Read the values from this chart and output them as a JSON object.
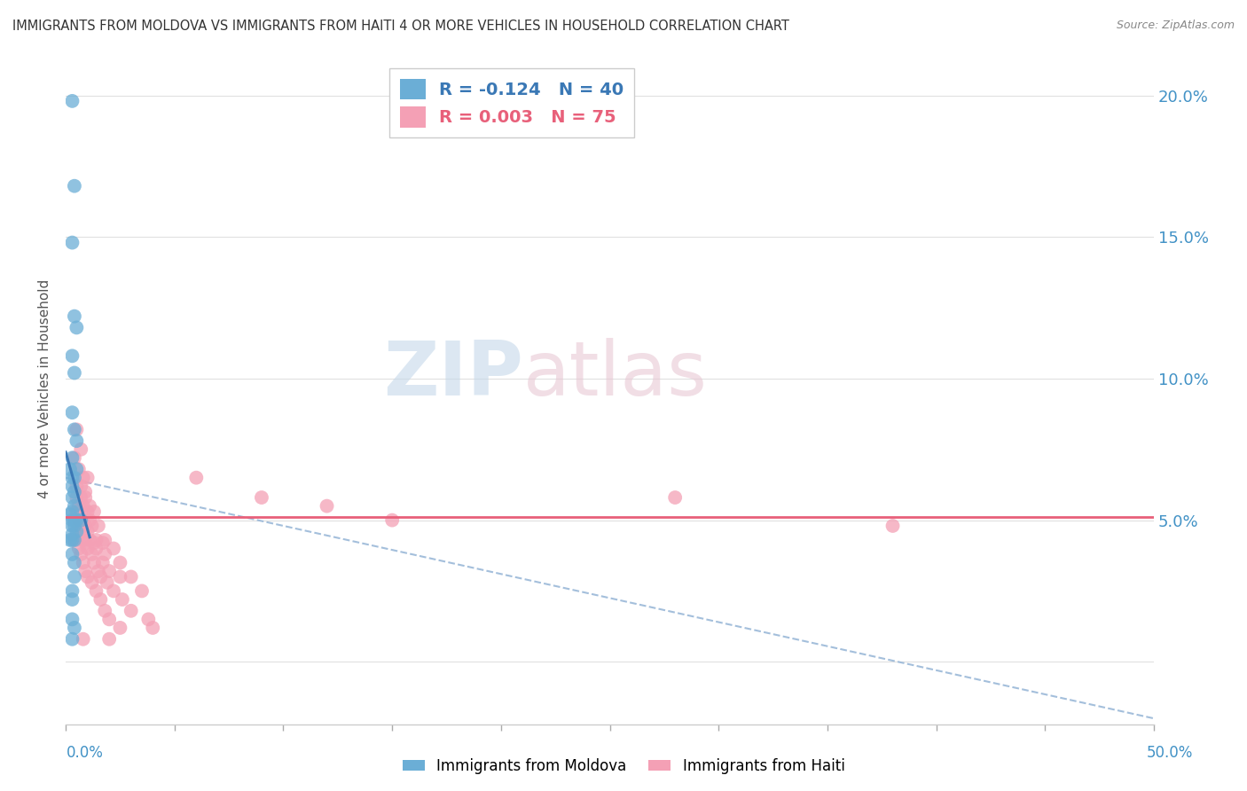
{
  "title": "IMMIGRANTS FROM MOLDOVA VS IMMIGRANTS FROM HAITI 4 OR MORE VEHICLES IN HOUSEHOLD CORRELATION CHART",
  "source": "Source: ZipAtlas.com",
  "ylabel": "4 or more Vehicles in Household",
  "y_ticks": [
    0.0,
    0.05,
    0.1,
    0.15,
    0.2
  ],
  "y_tick_labels": [
    "",
    "5.0%",
    "10.0%",
    "15.0%",
    "20.0%"
  ],
  "xlim": [
    0.0,
    0.5
  ],
  "ylim": [
    -0.022,
    0.215
  ],
  "moldova_R": -0.124,
  "moldova_N": 40,
  "haiti_R": 0.003,
  "haiti_N": 75,
  "moldova_color": "#6baed6",
  "haiti_color": "#f4a0b5",
  "moldova_line_color": "#3a78b5",
  "haiti_line_color": "#e8607a",
  "dash_color": "#9ab8d8",
  "watermark_color": "#d8e4f0",
  "watermark_color2": "#e8d0d8",
  "moldova_points": [
    [
      0.003,
      0.198
    ],
    [
      0.004,
      0.168
    ],
    [
      0.003,
      0.148
    ],
    [
      0.004,
      0.122
    ],
    [
      0.005,
      0.118
    ],
    [
      0.003,
      0.108
    ],
    [
      0.004,
      0.102
    ],
    [
      0.003,
      0.088
    ],
    [
      0.004,
      0.082
    ],
    [
      0.005,
      0.078
    ],
    [
      0.003,
      0.072
    ],
    [
      0.002,
      0.068
    ],
    [
      0.005,
      0.068
    ],
    [
      0.003,
      0.065
    ],
    [
      0.004,
      0.065
    ],
    [
      0.003,
      0.062
    ],
    [
      0.004,
      0.06
    ],
    [
      0.003,
      0.058
    ],
    [
      0.004,
      0.055
    ],
    [
      0.003,
      0.053
    ],
    [
      0.002,
      0.052
    ],
    [
      0.003,
      0.05
    ],
    [
      0.004,
      0.05
    ],
    [
      0.005,
      0.05
    ],
    [
      0.007,
      0.05
    ],
    [
      0.003,
      0.048
    ],
    [
      0.004,
      0.048
    ],
    [
      0.005,
      0.046
    ],
    [
      0.003,
      0.045
    ],
    [
      0.002,
      0.043
    ],
    [
      0.003,
      0.043
    ],
    [
      0.004,
      0.043
    ],
    [
      0.003,
      0.038
    ],
    [
      0.004,
      0.035
    ],
    [
      0.004,
      0.03
    ],
    [
      0.003,
      0.025
    ],
    [
      0.003,
      0.022
    ],
    [
      0.003,
      0.015
    ],
    [
      0.004,
      0.012
    ],
    [
      0.003,
      0.008
    ]
  ],
  "haiti_points": [
    [
      0.005,
      0.082
    ],
    [
      0.007,
      0.075
    ],
    [
      0.004,
      0.072
    ],
    [
      0.006,
      0.068
    ],
    [
      0.008,
      0.065
    ],
    [
      0.01,
      0.065
    ],
    [
      0.005,
      0.062
    ],
    [
      0.007,
      0.062
    ],
    [
      0.009,
      0.06
    ],
    [
      0.005,
      0.058
    ],
    [
      0.007,
      0.058
    ],
    [
      0.009,
      0.058
    ],
    [
      0.006,
      0.055
    ],
    [
      0.008,
      0.055
    ],
    [
      0.011,
      0.055
    ],
    [
      0.005,
      0.053
    ],
    [
      0.007,
      0.053
    ],
    [
      0.01,
      0.053
    ],
    [
      0.013,
      0.053
    ],
    [
      0.006,
      0.05
    ],
    [
      0.008,
      0.05
    ],
    [
      0.011,
      0.05
    ],
    [
      0.006,
      0.048
    ],
    [
      0.009,
      0.048
    ],
    [
      0.012,
      0.048
    ],
    [
      0.015,
      0.048
    ],
    [
      0.007,
      0.046
    ],
    [
      0.01,
      0.046
    ],
    [
      0.005,
      0.043
    ],
    [
      0.008,
      0.043
    ],
    [
      0.011,
      0.043
    ],
    [
      0.014,
      0.043
    ],
    [
      0.018,
      0.043
    ],
    [
      0.009,
      0.042
    ],
    [
      0.013,
      0.042
    ],
    [
      0.017,
      0.042
    ],
    [
      0.006,
      0.04
    ],
    [
      0.01,
      0.04
    ],
    [
      0.014,
      0.04
    ],
    [
      0.022,
      0.04
    ],
    [
      0.007,
      0.038
    ],
    [
      0.012,
      0.038
    ],
    [
      0.018,
      0.038
    ],
    [
      0.008,
      0.035
    ],
    [
      0.013,
      0.035
    ],
    [
      0.017,
      0.035
    ],
    [
      0.025,
      0.035
    ],
    [
      0.009,
      0.032
    ],
    [
      0.015,
      0.032
    ],
    [
      0.02,
      0.032
    ],
    [
      0.01,
      0.03
    ],
    [
      0.016,
      0.03
    ],
    [
      0.025,
      0.03
    ],
    [
      0.03,
      0.03
    ],
    [
      0.012,
      0.028
    ],
    [
      0.019,
      0.028
    ],
    [
      0.014,
      0.025
    ],
    [
      0.022,
      0.025
    ],
    [
      0.035,
      0.025
    ],
    [
      0.016,
      0.022
    ],
    [
      0.026,
      0.022
    ],
    [
      0.018,
      0.018
    ],
    [
      0.03,
      0.018
    ],
    [
      0.02,
      0.015
    ],
    [
      0.038,
      0.015
    ],
    [
      0.025,
      0.012
    ],
    [
      0.04,
      0.012
    ],
    [
      0.008,
      0.008
    ],
    [
      0.02,
      0.008
    ],
    [
      0.06,
      0.065
    ],
    [
      0.09,
      0.058
    ],
    [
      0.12,
      0.055
    ],
    [
      0.15,
      0.05
    ],
    [
      0.28,
      0.058
    ],
    [
      0.38,
      0.048
    ]
  ]
}
